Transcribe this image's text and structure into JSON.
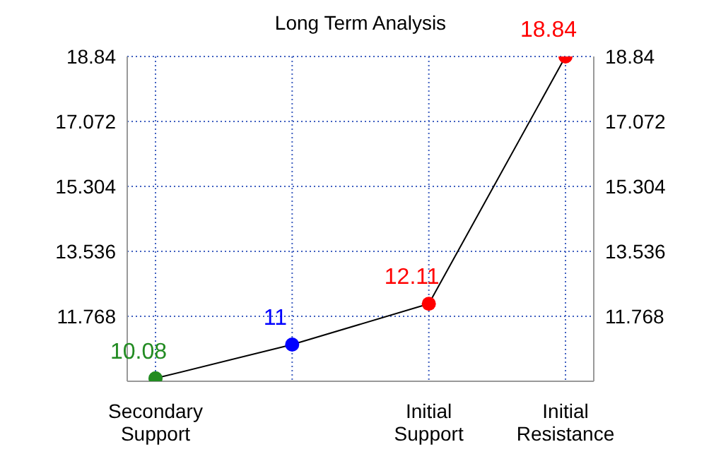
{
  "chart_data": {
    "type": "line",
    "title": "Long Term Analysis",
    "categories": [
      "Secondary Support",
      null,
      "Initial Support",
      "Initial Resistance"
    ],
    "series": [
      {
        "color": "#000000",
        "colors": [
          "#228b22",
          "#0000ff",
          "#ff0000",
          "#ff0000"
        ],
        "values": [
          10.08,
          11,
          12.11,
          18.84
        ]
      }
    ],
    "data_labels": true,
    "ylim": [
      10,
      18.84
    ],
    "yticks": [
      {
        "value": 10,
        "label": null
      },
      11.768,
      13.536,
      15.304,
      17.072,
      18.84
    ],
    "y2lim": [
      10,
      18.84
    ],
    "y2ticks": [
      11.768,
      13.536,
      15.304,
      17.072,
      18.84
    ],
    "grid": true,
    "marker": "circle",
    "line_style": "solid"
  }
}
